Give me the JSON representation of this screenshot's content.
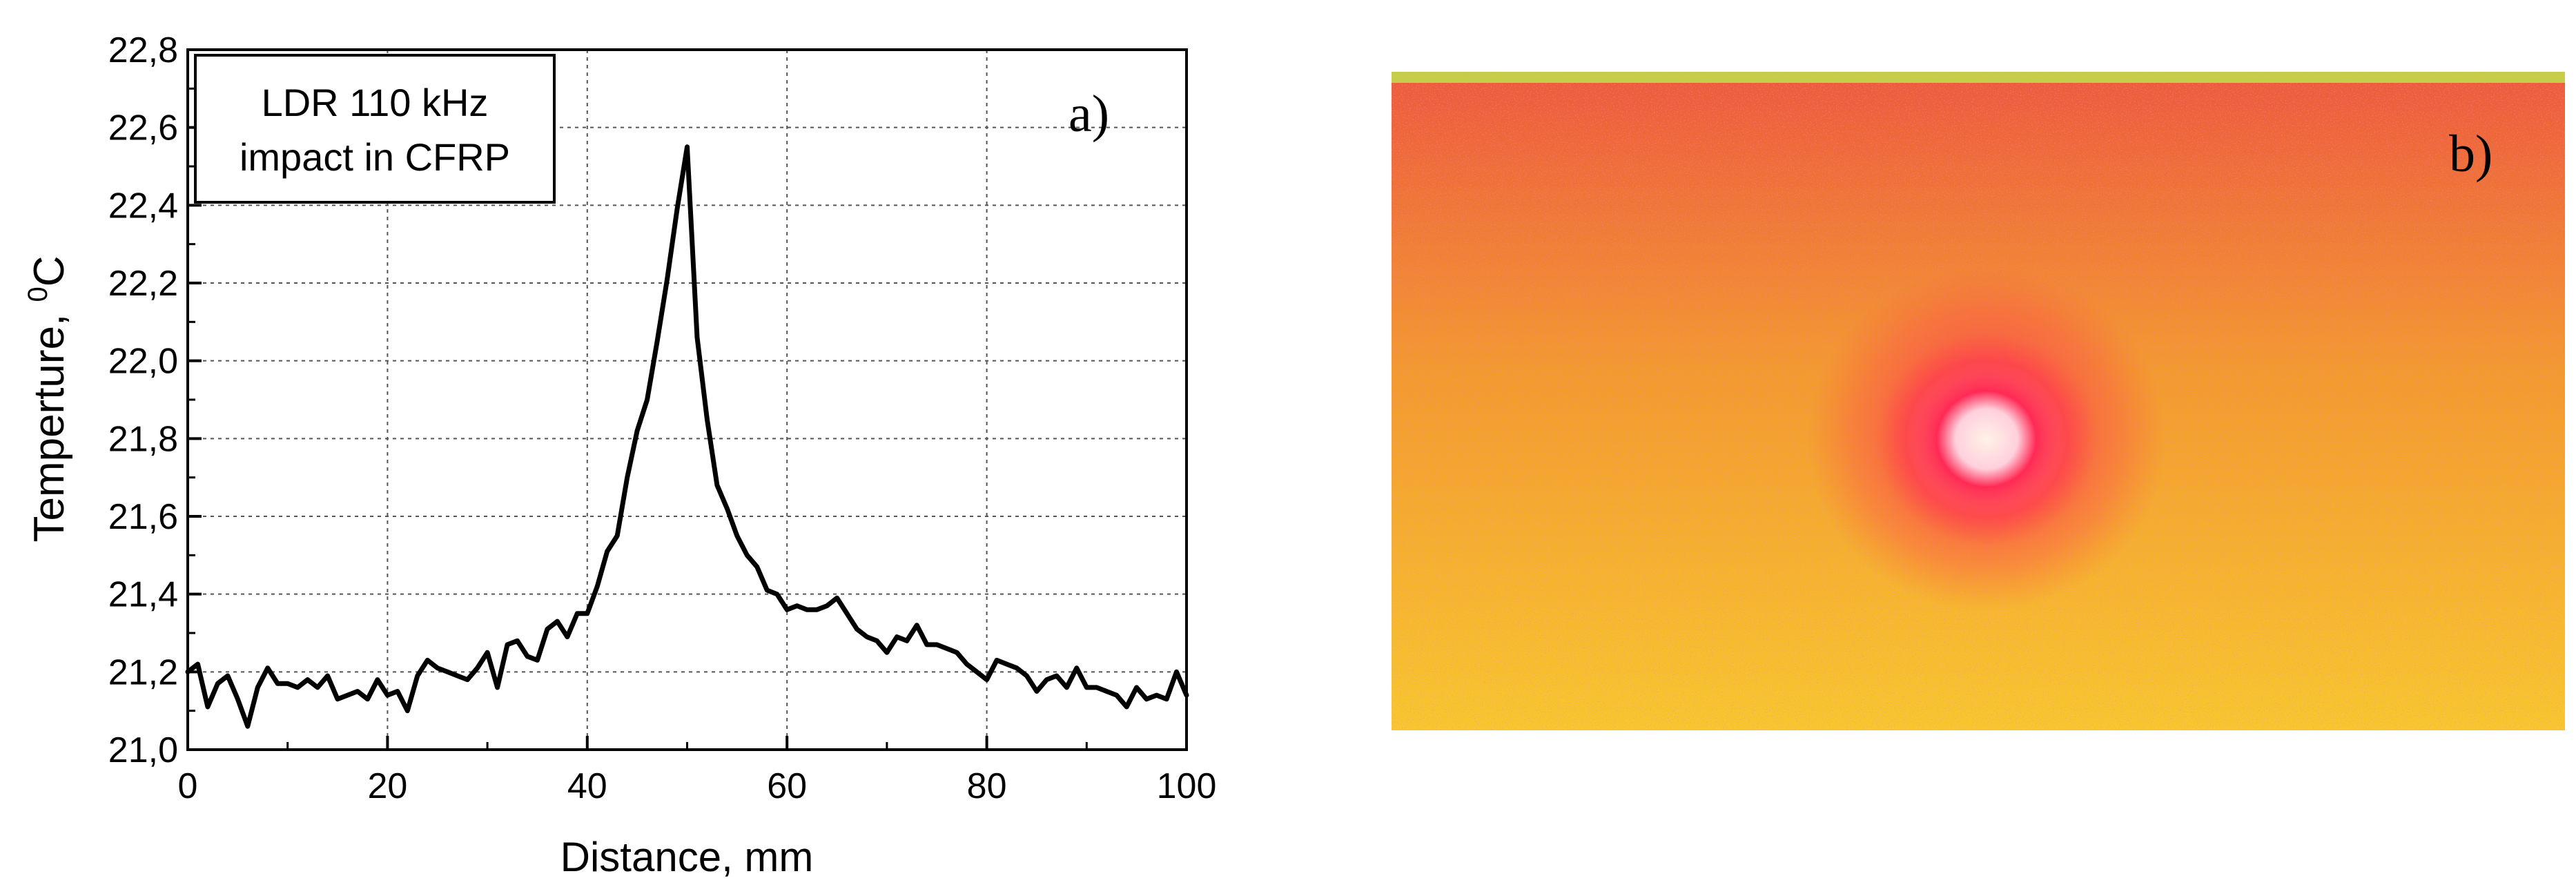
{
  "chart_data": {
    "type": "line",
    "panel_label": "a)",
    "legend_line1": "LDR 110 kHz",
    "legend_line2": "impact in CFRP",
    "legend_placement": "top-left",
    "xlabel": "Distance, mm",
    "ylabel_main": "Temperture, ",
    "ylabel_sup": "0",
    "ylabel_unit": "C",
    "xlim": [
      0,
      100
    ],
    "ylim": [
      21.0,
      22.8
    ],
    "grid": true,
    "x_ticks": [
      0,
      20,
      40,
      60,
      80,
      100
    ],
    "x_tick_labels": [
      "0",
      "20",
      "40",
      "60",
      "80",
      "100"
    ],
    "y_ticks": [
      21.0,
      21.2,
      21.4,
      21.6,
      21.8,
      22.0,
      22.2,
      22.4,
      22.6,
      22.8
    ],
    "y_tick_labels": [
      "21,0",
      "21,2",
      "21,4",
      "21,6",
      "21,8",
      "22,0",
      "22,2",
      "22,4",
      "22,6",
      "22,8"
    ],
    "series": [
      {
        "color": "#000000",
        "x": [
          0,
          1,
          2,
          3,
          4,
          5,
          6,
          7,
          8,
          9,
          10,
          11,
          12,
          13,
          14,
          15,
          16,
          17,
          18,
          19,
          20,
          21,
          22,
          23,
          24,
          25,
          26,
          27,
          28,
          29,
          30,
          31,
          32,
          33,
          34,
          35,
          36,
          37,
          38,
          39,
          40,
          41,
          42,
          43,
          44,
          45,
          46,
          47,
          48,
          49,
          50,
          51,
          52,
          53,
          54,
          55,
          56,
          57,
          58,
          59,
          60,
          61,
          62,
          63,
          64,
          65,
          66,
          67,
          68,
          69,
          70,
          71,
          72,
          73,
          74,
          75,
          76,
          77,
          78,
          79,
          80,
          81,
          82,
          83,
          84,
          85,
          86,
          87,
          88,
          89,
          90,
          91,
          92,
          93,
          94,
          95,
          96,
          97,
          98,
          99,
          100
        ],
        "y": [
          21.2,
          21.22,
          21.11,
          21.17,
          21.19,
          21.13,
          21.06,
          21.16,
          21.21,
          21.17,
          21.17,
          21.16,
          21.18,
          21.16,
          21.19,
          21.13,
          21.14,
          21.15,
          21.13,
          21.18,
          21.14,
          21.15,
          21.1,
          21.19,
          21.23,
          21.21,
          21.2,
          21.19,
          21.18,
          21.21,
          21.25,
          21.16,
          21.27,
          21.28,
          21.24,
          21.23,
          21.31,
          21.33,
          21.29,
          21.35,
          21.35,
          21.42,
          21.51,
          21.55,
          21.7,
          21.82,
          21.9,
          22.05,
          22.21,
          22.39,
          22.55,
          22.06,
          21.85,
          21.68,
          21.62,
          21.55,
          21.5,
          21.47,
          21.41,
          21.4,
          21.36,
          21.37,
          21.36,
          21.36,
          21.37,
          21.39,
          21.35,
          21.31,
          21.29,
          21.28,
          21.25,
          21.29,
          21.28,
          21.32,
          21.27,
          21.27,
          21.26,
          21.25,
          21.22,
          21.2,
          21.18,
          21.23,
          21.22,
          21.21,
          21.19,
          21.15,
          21.18,
          21.19,
          21.16,
          21.21,
          21.16,
          21.16,
          21.15,
          21.14,
          21.11,
          21.16,
          21.13,
          21.14,
          21.13,
          21.2,
          21.14
        ]
      }
    ]
  },
  "thermal_image": {
    "panel_label": "b)",
    "background_color": "#f29a2c",
    "hot_edge_color": "#ec5a3c",
    "cool_edge_color": "#f7c82a",
    "spot_color": "#ff2a55",
    "spot_core_color": "#fff2e8",
    "top_edge_color": "#bfe04a"
  }
}
